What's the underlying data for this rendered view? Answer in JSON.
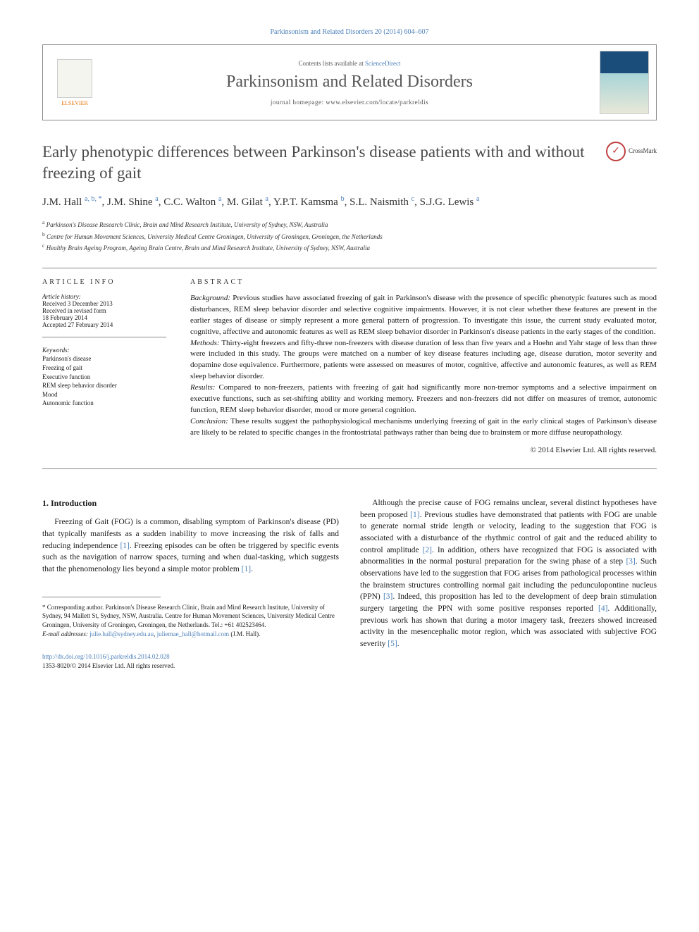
{
  "journal_ref": "Parkinsonism and Related Disorders 20 (2014) 604–607",
  "header": {
    "contents_text": "Contents lists available at ",
    "contents_link": "ScienceDirect",
    "journal_name": "Parkinsonism and Related Disorders",
    "homepage_label": "journal homepage: ",
    "homepage_url": "www.elsevier.com/locate/parkreldis",
    "publisher": "ELSEVIER"
  },
  "title": "Early phenotypic differences between Parkinson's disease patients with and without freezing of gait",
  "crossmark_label": "CrossMark",
  "authors_html": "J.M. Hall <sup>a, b, *</sup>, J.M. Shine <sup>a</sup>, C.C. Walton <sup>a</sup>, M. Gilat <sup>a</sup>, Y.P.T. Kamsma <sup>b</sup>, S.L. Naismith <sup>c</sup>, S.J.G. Lewis <sup>a</sup>",
  "affiliations": [
    {
      "sup": "a",
      "text": "Parkinson's Disease Research Clinic, Brain and Mind Research Institute, University of Sydney, NSW, Australia"
    },
    {
      "sup": "b",
      "text": "Centre for Human Movement Sciences, University Medical Centre Groningen, University of Groningen, Groningen, the Netherlands"
    },
    {
      "sup": "c",
      "text": "Healthy Brain Ageing Program, Ageing Brain Centre, Brain and Mind Research Institute, University of Sydney, NSW, Australia"
    }
  ],
  "article_info": {
    "heading": "article info",
    "history_label": "Article history:",
    "history": [
      "Received 3 December 2013",
      "Received in revised form",
      "18 February 2014",
      "Accepted 27 February 2014"
    ],
    "keywords_label": "Keywords:",
    "keywords": [
      "Parkinson's disease",
      "Freezing of gait",
      "Executive function",
      "REM sleep behavior disorder",
      "Mood",
      "Autonomic function"
    ]
  },
  "abstract": {
    "heading": "abstract",
    "sections": [
      {
        "label": "Background:",
        "text": " Previous studies have associated freezing of gait in Parkinson's disease with the presence of specific phenotypic features such as mood disturbances, REM sleep behavior disorder and selective cognitive impairments. However, it is not clear whether these features are present in the earlier stages of disease or simply represent a more general pattern of progression. To investigate this issue, the current study evaluated motor, cognitive, affective and autonomic features as well as REM sleep behavior disorder in Parkinson's disease patients in the early stages of the condition."
      },
      {
        "label": "Methods:",
        "text": " Thirty-eight freezers and fifty-three non-freezers with disease duration of less than five years and a Hoehn and Yahr stage of less than three were included in this study. The groups were matched on a number of key disease features including age, disease duration, motor severity and dopamine dose equivalence. Furthermore, patients were assessed on measures of motor, cognitive, affective and autonomic features, as well as REM sleep behavior disorder."
      },
      {
        "label": "Results:",
        "text": " Compared to non-freezers, patients with freezing of gait had significantly more non-tremor symptoms and a selective impairment on executive functions, such as set-shifting ability and working memory. Freezers and non-freezers did not differ on measures of tremor, autonomic function, REM sleep behavior disorder, mood or more general cognition."
      },
      {
        "label": "Conclusion:",
        "text": " These results suggest the pathophysiological mechanisms underlying freezing of gait in the early clinical stages of Parkinson's disease are likely to be related to specific changes in the frontostriatal pathways rather than being due to brainstem or more diffuse neuropathology."
      }
    ],
    "copyright": "© 2014 Elsevier Ltd. All rights reserved."
  },
  "body": {
    "section_heading": "1. Introduction",
    "col1_p1": "Freezing of Gait (FOG) is a common, disabling symptom of Parkinson's disease (PD) that typically manifests as a sudden inability to move increasing the risk of falls and reducing independence [1]. Freezing episodes can be often be triggered by specific events such as the navigation of narrow spaces, turning and when dual-tasking, which suggests that the phenomenology lies beyond a simple motor problem [1].",
    "col2_p1": "Although the precise cause of FOG remains unclear, several distinct hypotheses have been proposed [1]. Previous studies have demonstrated that patients with FOG are unable to generate normal stride length or velocity, leading to the suggestion that FOG is associated with a disturbance of the rhythmic control of gait and the reduced ability to control amplitude [2]. In addition, others have recognized that FOG is associated with abnormalities in the normal postural preparation for the swing phase of a step [3]. Such observations have led to the suggestion that FOG arises from pathological processes within the brainstem structures controlling normal gait including the pedunculopontine nucleus (PPN) [3]. Indeed, this proposition has led to the development of deep brain stimulation surgery targeting the PPN with some positive responses reported [4]. Additionally, previous work has shown that during a motor imagery task, freezers showed increased activity in the mesencephalic motor region, which was associated with subjective FOG severity [5]."
  },
  "footnote": {
    "corresponding": "* Corresponding author. Parkinson's Disease Research Clinic, Brain and Mind Research Institute, University of Sydney, 94 Mallett St, Sydney, NSW, Australia. Centre for Human Movement Sciences, University Medical Centre Groningen, University of Groningen, Groningen, the Netherlands. Tel.: +61 402523464.",
    "email_label": "E-mail addresses:",
    "email1": "julie.hall@sydney.edu.au",
    "email2": "juliemae_hall@hotmail.com",
    "email_suffix": " (J.M. Hall)."
  },
  "footer": {
    "doi": "http://dx.doi.org/10.1016/j.parkreldis.2014.02.028",
    "issn": "1353-8020/© 2014 Elsevier Ltd. All rights reserved."
  },
  "colors": {
    "link": "#4a7fb8",
    "border": "#888888",
    "text": "#1a1a1a"
  }
}
